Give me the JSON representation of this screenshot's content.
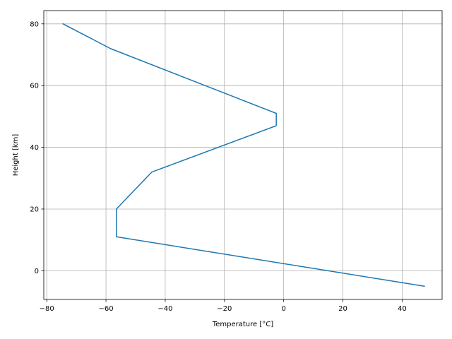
{
  "chart_data": {
    "type": "line",
    "title": "",
    "xlabel": "Temperature [°C]",
    "ylabel": "Height [km]",
    "xlim": [
      -81,
      53.5
    ],
    "ylim": [
      -9.3,
      84.3
    ],
    "xticks": [
      -80,
      -60,
      -40,
      -20,
      0,
      20,
      40
    ],
    "yticks": [
      0,
      20,
      40,
      60,
      80
    ],
    "grid": true,
    "legend": "none",
    "series": [
      {
        "color": "#1f77b4",
        "x": [
          47.5,
          -56.5,
          -56.5,
          -44.5,
          -2.5,
          -2.5,
          -58.5,
          -74.5
        ],
        "y": [
          -5,
          11,
          20,
          32,
          47,
          51,
          72,
          80
        ]
      }
    ]
  }
}
